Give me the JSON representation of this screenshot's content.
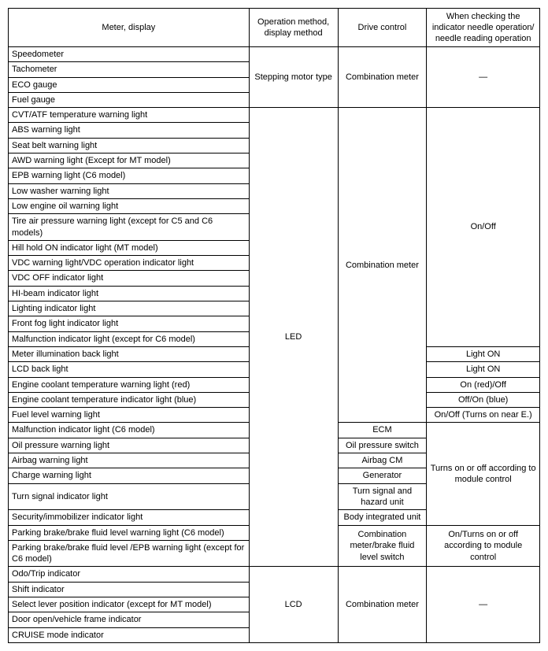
{
  "table": {
    "headers": {
      "c1": "Meter, display",
      "c2": "Operation method, display method",
      "c3": "Drive control",
      "c4": "When checking the indicator needle operation/ needle reading operation"
    },
    "group1": {
      "rows": [
        "Speedometer",
        "Tachometer",
        "ECO gauge",
        "Fuel gauge"
      ],
      "op": "Stepping motor type",
      "drive": "Combination meter",
      "check": "—"
    },
    "group2": {
      "onoff_rows": [
        "CVT/ATF temperature warning light",
        "ABS warning light",
        "Seat belt warning light",
        "AWD warning light (Except for MT model)",
        "EPB warning light (C6 model)",
        "Low washer warning light",
        "Low engine oil warning light",
        "Tire air pressure warning light (except for C5 and C6 models)",
        "Hill hold ON indicator light (MT model)",
        "VDC warning light/VDC operation indicator light",
        "VDC OFF indicator light",
        "HI-beam indicator light",
        "Lighting indicator light",
        "Front fog light indicator light",
        "Malfunction indicator light (except for C6 model)"
      ],
      "onoff_label": "On/Off",
      "led_label": "LED",
      "comb_label": "Combination meter",
      "single_rows": [
        {
          "name": "Meter illumination back light",
          "check": "Light ON"
        },
        {
          "name": "LCD back light",
          "check": "Light ON"
        },
        {
          "name": "Engine coolant temperature warning light (red)",
          "check": "On (red)/Off"
        },
        {
          "name": "Engine coolant temperature indicator light (blue)",
          "check": "Off/On (blue)"
        },
        {
          "name": "Fuel level warning light",
          "check": "On/Off (Turns on near E.)"
        }
      ],
      "module_rows": [
        {
          "name": "Malfunction indicator light (C6 model)",
          "drive": "ECM"
        },
        {
          "name": "Oil pressure warning light",
          "drive": "Oil pressure switch"
        },
        {
          "name": "Airbag warning light",
          "drive": "Airbag CM"
        },
        {
          "name": "Charge warning light",
          "drive": "Generator"
        },
        {
          "name": "Turn signal indicator light",
          "drive": "Turn signal and hazard unit"
        },
        {
          "name": "Security/immobilizer indicator light",
          "drive": "Body integrated unit"
        }
      ],
      "module_check": "Turns on or off according to module control",
      "parking_rows": [
        "Parking brake/brake fluid level warning light (C6 model)",
        "Parking brake/brake fluid level /EPB warning light (except for C6 model)"
      ],
      "parking_drive": "Combination meter/brake fluid level switch",
      "parking_check": "On/Turns on or off according to module control"
    },
    "group3": {
      "rows": [
        "Odo/Trip indicator",
        "Shift indicator",
        "Select lever position indicator (except for MT model)",
        "Door open/vehicle frame indicator",
        "CRUISE mode indicator"
      ],
      "op": "LCD",
      "drive": "Combination meter",
      "check": "—"
    }
  }
}
